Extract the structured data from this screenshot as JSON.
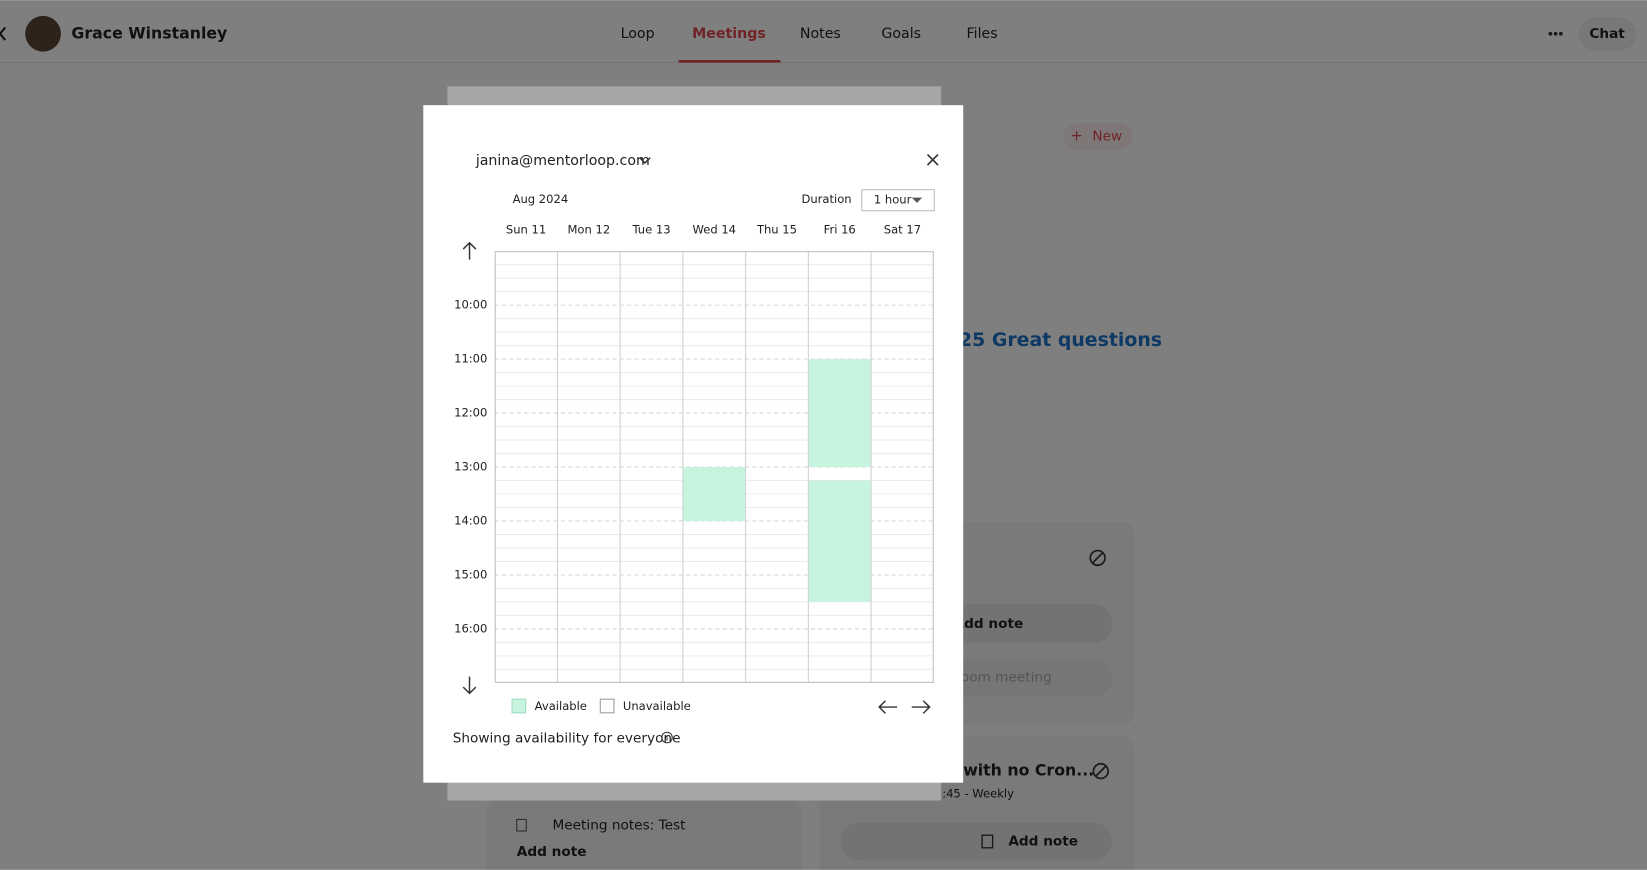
{
  "app": {
    "user_name": "Grace Winstanley",
    "tabs": [
      "Loop",
      "Meetings",
      "Notes",
      "Goals",
      "Files"
    ],
    "active_tab": 1,
    "chat": "Chat",
    "new_button": "New",
    "heading_fragment": "25 Great questions",
    "right_card_buttons": [
      "Add note",
      "oom meeting"
    ],
    "second_card_title": "with no Cron...",
    "second_card_subtitle": ":45 - Weekly",
    "second_card_button": "Add note",
    "left_card_title": "Meeting notes: Test",
    "left_card_button": "Add note"
  },
  "modal": {
    "email": "janina@mentorloop.com",
    "month": "Aug 2024",
    "duration_label": "Duration",
    "duration": "1 hour",
    "days": [
      "Sun 11",
      "Mon 12",
      "Tue 13",
      "Wed 14",
      "Thu 15",
      "Fri 16",
      "Sat 17"
    ],
    "times": [
      "10:00",
      "11:00",
      "12:00",
      "13:00",
      "14:00",
      "15:00",
      "16:00"
    ],
    "availability": [
      {
        "day": 3,
        "start": 13,
        "end": 14
      },
      {
        "day": 5,
        "start": 11,
        "end": 13
      },
      {
        "day": 5,
        "start": 13.25,
        "end": 15.5
      }
    ],
    "legend": {
      "available": "Available",
      "unavailable": "Unavailable"
    },
    "footer": "Showing availability for everyone"
  }
}
